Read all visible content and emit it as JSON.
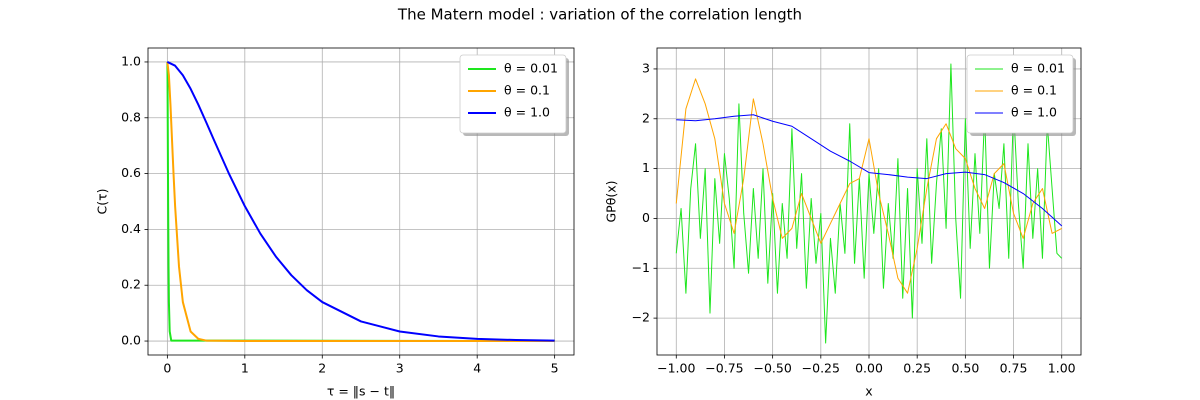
{
  "title": "The Matern model : variation of the correlation length",
  "chart_data": [
    {
      "type": "line",
      "xlabel": "τ = ‖s − t‖",
      "ylabel": "C(τ)",
      "xlim": [
        -0.25,
        5.25
      ],
      "ylim": [
        -0.05,
        1.05
      ],
      "xticks": [
        0,
        1,
        2,
        3,
        4,
        5
      ],
      "yticks": [
        {
          "value": 0,
          "label": "0.0"
        },
        {
          "value": 0.2,
          "label": "0.2"
        },
        {
          "value": 0.4,
          "label": "0.4"
        },
        {
          "value": 0.6,
          "label": "0.6"
        },
        {
          "value": 0.8,
          "label": "0.8"
        },
        {
          "value": 1,
          "label": "1.0"
        }
      ],
      "grid": true,
      "legend": "upper right",
      "linewidth": 2,
      "series": [
        {
          "name": "θ = 0.01",
          "color": "#1ee61e",
          "x": [
            0,
            0.002,
            0.004,
            0.006,
            0.008,
            0.01,
            0.015,
            0.02,
            0.03,
            0.05,
            5
          ],
          "values": [
            1,
            0.9522,
            0.8468,
            0.7213,
            0.5968,
            0.4834,
            0.2677,
            0.1397,
            0.0343,
            0.0017,
            0
          ]
        },
        {
          "name": "θ = 0.1",
          "color": "#ffa500",
          "x": [
            0,
            0.02,
            0.04,
            0.06,
            0.08,
            0.1,
            0.15,
            0.2,
            0.3,
            0.4,
            0.5,
            1,
            5
          ],
          "values": [
            1,
            0.9522,
            0.8468,
            0.7213,
            0.5968,
            0.4834,
            0.2677,
            0.1397,
            0.0343,
            0.0078,
            0.0017,
            0,
            0
          ]
        },
        {
          "name": "θ = 1.0",
          "color": "#0000ff",
          "x": [
            0,
            0.1,
            0.2,
            0.3,
            0.4,
            0.5,
            0.6,
            0.8,
            1,
            1.2,
            1.4,
            1.6,
            1.8,
            2,
            2.5,
            3,
            3.5,
            4,
            4.5,
            5
          ],
          "values": [
            1,
            0.9866,
            0.9522,
            0.9038,
            0.8468,
            0.7849,
            0.7213,
            0.5968,
            0.4834,
            0.3851,
            0.303,
            0.236,
            0.1823,
            0.1397,
            0.0702,
            0.0343,
            0.0165,
            0.0078,
            0.0036,
            0.0017
          ]
        }
      ]
    },
    {
      "type": "line",
      "xlabel": "x",
      "ylabel": "GPθ(x)",
      "xlim": [
        -1.1,
        1.1
      ],
      "ylim": [
        -2.74,
        3.42
      ],
      "xticks": [
        {
          "value": -1,
          "label": "−1.00"
        },
        {
          "value": -0.75,
          "label": "−0.75"
        },
        {
          "value": -0.5,
          "label": "−0.50"
        },
        {
          "value": -0.25,
          "label": "−0.25"
        },
        {
          "value": 0,
          "label": "0.00"
        },
        {
          "value": 0.25,
          "label": "0.25"
        },
        {
          "value": 0.5,
          "label": "0.50"
        },
        {
          "value": 0.75,
          "label": "0.75"
        },
        {
          "value": 1,
          "label": "1.00"
        }
      ],
      "yticks": [
        {
          "value": -2,
          "label": "−2"
        },
        {
          "value": -1,
          "label": "−1"
        },
        0,
        1,
        2,
        3
      ],
      "grid": true,
      "legend": "upper right",
      "linewidth": 1,
      "series": [
        {
          "name": "θ = 0.01",
          "color": "#1ee61e",
          "x": [
            -1,
            -0.975,
            -0.95,
            -0.925,
            -0.9,
            -0.875,
            -0.85,
            -0.825,
            -0.8,
            -0.775,
            -0.75,
            -0.725,
            -0.7,
            -0.675,
            -0.65,
            -0.625,
            -0.6,
            -0.575,
            -0.55,
            -0.525,
            -0.5,
            -0.475,
            -0.45,
            -0.425,
            -0.4,
            -0.375,
            -0.35,
            -0.325,
            -0.3,
            -0.275,
            -0.25,
            -0.225,
            -0.2,
            -0.175,
            -0.15,
            -0.125,
            -0.1,
            -0.075,
            -0.05,
            -0.025,
            0,
            0.025,
            0.05,
            0.075,
            0.1,
            0.125,
            0.15,
            0.175,
            0.2,
            0.225,
            0.25,
            0.275,
            0.3,
            0.325,
            0.35,
            0.375,
            0.4,
            0.425,
            0.45,
            0.475,
            0.5,
            0.525,
            0.55,
            0.575,
            0.6,
            0.625,
            0.65,
            0.675,
            0.7,
            0.725,
            0.75,
            0.775,
            0.8,
            0.825,
            0.85,
            0.875,
            0.9,
            0.925,
            0.95,
            0.975,
            1
          ],
          "values": [
            -0.7,
            0.2,
            -1.5,
            0.6,
            1.5,
            -0.4,
            1.0,
            -1.9,
            0.8,
            -0.5,
            1.3,
            0.4,
            -1.0,
            2.3,
            0.1,
            -1.1,
            0.6,
            -0.8,
            1.0,
            -1.3,
            0.5,
            -1.5,
            0.3,
            -0.8,
            1.8,
            -0.6,
            0.9,
            -1.4,
            0.4,
            -0.9,
            0.1,
            -2.5,
            -0.4,
            -1.5,
            0.3,
            -0.7,
            1.9,
            -0.9,
            0.8,
            -1.2,
            0.9,
            -0.3,
            1.0,
            -1.4,
            0.3,
            -0.8,
            1.2,
            -1.6,
            0.6,
            -2.0,
            1.0,
            -0.5,
            1.6,
            -0.9,
            0.7,
            1.8,
            -0.2,
            3.1,
            0.0,
            -1.6,
            2.0,
            -0.6,
            1.3,
            -0.3,
            2.1,
            -1.0,
            0.9,
            0.2,
            1.5,
            -0.8,
            2.2,
            0.3,
            -1.0,
            1.5,
            -0.4,
            1.0,
            -0.8,
            1.9,
            0.6,
            -0.7,
            -0.8
          ]
        },
        {
          "name": "θ = 0.1",
          "color": "#ffa500",
          "x": [
            -1,
            -0.95,
            -0.9,
            -0.85,
            -0.8,
            -0.75,
            -0.7,
            -0.65,
            -0.6,
            -0.55,
            -0.5,
            -0.45,
            -0.4,
            -0.35,
            -0.3,
            -0.25,
            -0.2,
            -0.15,
            -0.1,
            -0.05,
            0,
            0.05,
            0.1,
            0.15,
            0.2,
            0.25,
            0.3,
            0.35,
            0.4,
            0.45,
            0.5,
            0.55,
            0.6,
            0.65,
            0.7,
            0.75,
            0.8,
            0.85,
            0.9,
            0.95,
            1
          ],
          "values": [
            0.3,
            2.2,
            2.8,
            2.3,
            1.6,
            0.3,
            -0.3,
            0.8,
            2.4,
            1.5,
            0.4,
            -0.4,
            -0.2,
            0.5,
            0.0,
            -0.5,
            -0.1,
            0.3,
            0.7,
            0.8,
            1.6,
            0.5,
            -0.3,
            -1.2,
            -1.5,
            -0.6,
            0.6,
            1.6,
            1.9,
            1.4,
            1.2,
            0.6,
            0.2,
            0.9,
            1.1,
            0.1,
            -0.4,
            0.3,
            0.6,
            -0.3,
            -0.2
          ]
        },
        {
          "name": "θ = 1.0",
          "color": "#0000ff",
          "x": [
            -1,
            -0.9,
            -0.8,
            -0.7,
            -0.6,
            -0.5,
            -0.4,
            -0.3,
            -0.2,
            -0.1,
            0,
            0.1,
            0.2,
            0.3,
            0.4,
            0.5,
            0.6,
            0.7,
            0.8,
            0.9,
            1
          ],
          "values": [
            1.98,
            1.96,
            2.0,
            2.05,
            2.08,
            1.95,
            1.85,
            1.6,
            1.35,
            1.15,
            0.92,
            0.88,
            0.83,
            0.8,
            0.9,
            0.93,
            0.88,
            0.72,
            0.5,
            0.2,
            -0.15
          ]
        }
      ]
    }
  ]
}
